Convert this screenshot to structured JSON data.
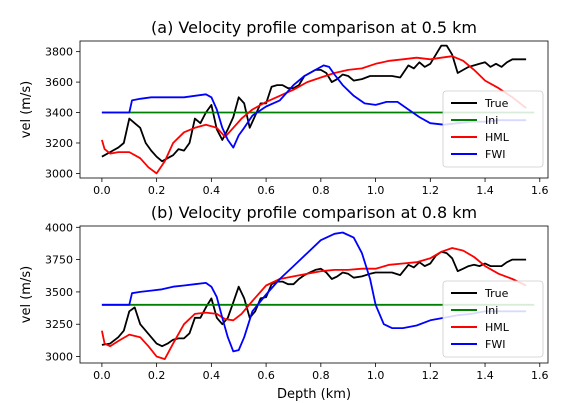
{
  "figure": {
    "xlabel": "Depth (km)",
    "ylabel": "vel (m/s)"
  },
  "chart_data": [
    {
      "type": "line",
      "title": "(a) Velocity profile comparison at 0.5 km",
      "xlabel": "",
      "ylabel": "vel (m/s)",
      "xlim": [
        -0.08,
        1.63
      ],
      "ylim": [
        2970,
        3870
      ],
      "xticks": [
        0.0,
        0.2,
        0.4,
        0.6,
        0.8,
        1.0,
        1.2,
        1.4,
        1.6
      ],
      "xtick_labels": [
        "0.0",
        "0.2",
        "0.4",
        "0.6",
        "0.8",
        "1.0",
        "1.2",
        "1.4",
        "1.6"
      ],
      "yticks": [
        3000,
        3200,
        3400,
        3600,
        3800
      ],
      "ytick_labels": [
        "3000",
        "3200",
        "3400",
        "3600",
        "3800"
      ],
      "legend": "right",
      "grid": false,
      "series": [
        {
          "name": "True",
          "color": "#000000",
          "x": [
            0.0,
            0.03,
            0.06,
            0.08,
            0.1,
            0.12,
            0.14,
            0.16,
            0.18,
            0.2,
            0.22,
            0.24,
            0.26,
            0.28,
            0.3,
            0.32,
            0.34,
            0.36,
            0.38,
            0.4,
            0.42,
            0.44,
            0.46,
            0.48,
            0.5,
            0.52,
            0.54,
            0.56,
            0.58,
            0.6,
            0.62,
            0.64,
            0.66,
            0.68,
            0.7,
            0.72,
            0.74,
            0.76,
            0.78,
            0.8,
            0.82,
            0.84,
            0.86,
            0.88,
            0.9,
            0.92,
            0.95,
            0.98,
            1.0,
            1.03,
            1.06,
            1.09,
            1.12,
            1.14,
            1.16,
            1.18,
            1.2,
            1.22,
            1.24,
            1.26,
            1.28,
            1.3,
            1.32,
            1.34,
            1.36,
            1.38,
            1.4,
            1.42,
            1.44,
            1.46,
            1.48,
            1.5,
            1.52,
            1.55
          ],
          "y": [
            3110,
            3140,
            3170,
            3200,
            3360,
            3330,
            3300,
            3200,
            3150,
            3110,
            3080,
            3100,
            3120,
            3160,
            3150,
            3200,
            3360,
            3330,
            3400,
            3450,
            3290,
            3220,
            3290,
            3370,
            3500,
            3460,
            3300,
            3380,
            3460,
            3460,
            3570,
            3580,
            3580,
            3560,
            3560,
            3580,
            3640,
            3660,
            3680,
            3680,
            3660,
            3600,
            3620,
            3650,
            3640,
            3610,
            3620,
            3640,
            3640,
            3640,
            3640,
            3630,
            3710,
            3690,
            3730,
            3700,
            3720,
            3780,
            3840,
            3840,
            3780,
            3660,
            3680,
            3700,
            3710,
            3720,
            3730,
            3700,
            3720,
            3700,
            3730,
            3750,
            3750,
            3750
          ]
        },
        {
          "name": "Ini",
          "color": "#008000",
          "x": [
            0.0,
            1.58
          ],
          "y": [
            3400,
            3400
          ]
        },
        {
          "name": "HML",
          "color": "#ff0000",
          "x": [
            0.0,
            0.01,
            0.03,
            0.06,
            0.1,
            0.14,
            0.17,
            0.2,
            0.23,
            0.26,
            0.3,
            0.34,
            0.38,
            0.42,
            0.45,
            0.48,
            0.51,
            0.55,
            0.6,
            0.65,
            0.7,
            0.75,
            0.8,
            0.85,
            0.9,
            0.95,
            1.0,
            1.05,
            1.1,
            1.15,
            1.2,
            1.24,
            1.28,
            1.32,
            1.36,
            1.4,
            1.45,
            1.5,
            1.55
          ],
          "y": [
            3220,
            3160,
            3130,
            3140,
            3140,
            3100,
            3040,
            3000,
            3080,
            3200,
            3270,
            3300,
            3320,
            3300,
            3240,
            3300,
            3360,
            3420,
            3470,
            3510,
            3550,
            3600,
            3630,
            3660,
            3680,
            3690,
            3720,
            3740,
            3750,
            3760,
            3750,
            3760,
            3770,
            3740,
            3680,
            3610,
            3560,
            3500,
            3430
          ]
        },
        {
          "name": "FWI",
          "color": "#0000ff",
          "x": [
            0.0,
            0.05,
            0.1,
            0.11,
            0.14,
            0.18,
            0.22,
            0.26,
            0.3,
            0.34,
            0.38,
            0.4,
            0.42,
            0.44,
            0.46,
            0.48,
            0.5,
            0.52,
            0.55,
            0.6,
            0.65,
            0.7,
            0.74,
            0.78,
            0.81,
            0.83,
            0.85,
            0.88,
            0.92,
            0.96,
            1.0,
            1.04,
            1.08,
            1.12,
            1.16,
            1.2,
            1.25,
            1.3,
            1.35,
            1.4,
            1.45,
            1.5,
            1.55
          ],
          "y": [
            3400,
            3400,
            3400,
            3480,
            3490,
            3500,
            3500,
            3500,
            3500,
            3510,
            3520,
            3500,
            3420,
            3300,
            3220,
            3170,
            3250,
            3300,
            3380,
            3440,
            3480,
            3580,
            3640,
            3680,
            3710,
            3700,
            3650,
            3580,
            3510,
            3460,
            3450,
            3470,
            3470,
            3420,
            3370,
            3330,
            3320,
            3330,
            3340,
            3340,
            3350,
            3350,
            3350
          ]
        }
      ]
    },
    {
      "type": "line",
      "title": "(b) Velocity profile comparison at 0.8 km",
      "xlabel": "Depth (km)",
      "ylabel": "vel (m/s)",
      "xlim": [
        -0.08,
        1.63
      ],
      "ylim": [
        2950,
        4010
      ],
      "xticks": [
        0.0,
        0.2,
        0.4,
        0.6,
        0.8,
        1.0,
        1.2,
        1.4,
        1.6
      ],
      "xtick_labels": [
        "0.0",
        "0.2",
        "0.4",
        "0.6",
        "0.8",
        "1.0",
        "1.2",
        "1.4",
        "1.6"
      ],
      "yticks": [
        3000,
        3250,
        3500,
        3750,
        4000
      ],
      "ytick_labels": [
        "3000",
        "3250",
        "3500",
        "3750",
        "4000"
      ],
      "legend": "lower right",
      "grid": false,
      "series": [
        {
          "name": "True",
          "color": "#000000",
          "x": [
            0.0,
            0.03,
            0.06,
            0.08,
            0.1,
            0.12,
            0.14,
            0.16,
            0.18,
            0.2,
            0.22,
            0.24,
            0.26,
            0.28,
            0.3,
            0.32,
            0.34,
            0.36,
            0.38,
            0.4,
            0.42,
            0.44,
            0.46,
            0.48,
            0.5,
            0.52,
            0.54,
            0.56,
            0.58,
            0.6,
            0.62,
            0.64,
            0.66,
            0.68,
            0.7,
            0.72,
            0.74,
            0.76,
            0.78,
            0.8,
            0.82,
            0.84,
            0.86,
            0.88,
            0.9,
            0.92,
            0.95,
            0.98,
            1.0,
            1.03,
            1.06,
            1.09,
            1.12,
            1.14,
            1.16,
            1.18,
            1.2,
            1.22,
            1.24,
            1.26,
            1.28,
            1.3,
            1.32,
            1.34,
            1.36,
            1.38,
            1.4,
            1.42,
            1.44,
            1.46,
            1.48,
            1.5,
            1.52,
            1.55
          ],
          "y": [
            3090,
            3100,
            3150,
            3200,
            3350,
            3380,
            3250,
            3200,
            3150,
            3100,
            3080,
            3100,
            3130,
            3140,
            3140,
            3180,
            3300,
            3300,
            3380,
            3450,
            3300,
            3250,
            3300,
            3420,
            3540,
            3450,
            3300,
            3350,
            3450,
            3460,
            3560,
            3580,
            3580,
            3560,
            3560,
            3600,
            3630,
            3650,
            3670,
            3680,
            3650,
            3600,
            3620,
            3650,
            3640,
            3610,
            3620,
            3640,
            3650,
            3650,
            3650,
            3630,
            3710,
            3690,
            3730,
            3700,
            3720,
            3780,
            3810,
            3800,
            3760,
            3660,
            3680,
            3700,
            3710,
            3700,
            3720,
            3700,
            3700,
            3700,
            3730,
            3750,
            3750,
            3750
          ]
        },
        {
          "name": "Ini",
          "color": "#008000",
          "x": [
            0.0,
            1.58
          ],
          "y": [
            3400,
            3400
          ]
        },
        {
          "name": "HML",
          "color": "#ff0000",
          "x": [
            0.0,
            0.01,
            0.03,
            0.06,
            0.1,
            0.14,
            0.17,
            0.2,
            0.23,
            0.26,
            0.3,
            0.34,
            0.38,
            0.42,
            0.45,
            0.48,
            0.51,
            0.55,
            0.6,
            0.65,
            0.7,
            0.75,
            0.8,
            0.85,
            0.9,
            0.95,
            1.0,
            1.05,
            1.1,
            1.15,
            1.2,
            1.24,
            1.28,
            1.32,
            1.36,
            1.4,
            1.45,
            1.5,
            1.55
          ],
          "y": [
            3200,
            3100,
            3080,
            3120,
            3170,
            3150,
            3080,
            3000,
            2980,
            3100,
            3250,
            3330,
            3340,
            3330,
            3290,
            3280,
            3330,
            3430,
            3550,
            3600,
            3620,
            3640,
            3660,
            3670,
            3670,
            3680,
            3680,
            3710,
            3720,
            3730,
            3760,
            3810,
            3840,
            3820,
            3770,
            3700,
            3640,
            3600,
            3550
          ]
        },
        {
          "name": "FWI",
          "color": "#0000ff",
          "x": [
            0.0,
            0.05,
            0.1,
            0.11,
            0.14,
            0.18,
            0.22,
            0.26,
            0.3,
            0.34,
            0.38,
            0.4,
            0.42,
            0.44,
            0.46,
            0.48,
            0.5,
            0.52,
            0.55,
            0.6,
            0.65,
            0.7,
            0.75,
            0.8,
            0.85,
            0.88,
            0.92,
            0.95,
            0.98,
            1.0,
            1.03,
            1.06,
            1.1,
            1.15,
            1.2,
            1.25,
            1.3,
            1.35,
            1.4,
            1.45,
            1.5,
            1.55
          ],
          "y": [
            3400,
            3400,
            3400,
            3490,
            3500,
            3510,
            3520,
            3540,
            3550,
            3560,
            3570,
            3540,
            3460,
            3300,
            3150,
            3040,
            3050,
            3150,
            3350,
            3480,
            3600,
            3700,
            3800,
            3900,
            3950,
            3960,
            3920,
            3800,
            3600,
            3400,
            3250,
            3220,
            3220,
            3240,
            3280,
            3300,
            3320,
            3330,
            3350,
            3350,
            3350,
            3350
          ]
        }
      ]
    }
  ]
}
